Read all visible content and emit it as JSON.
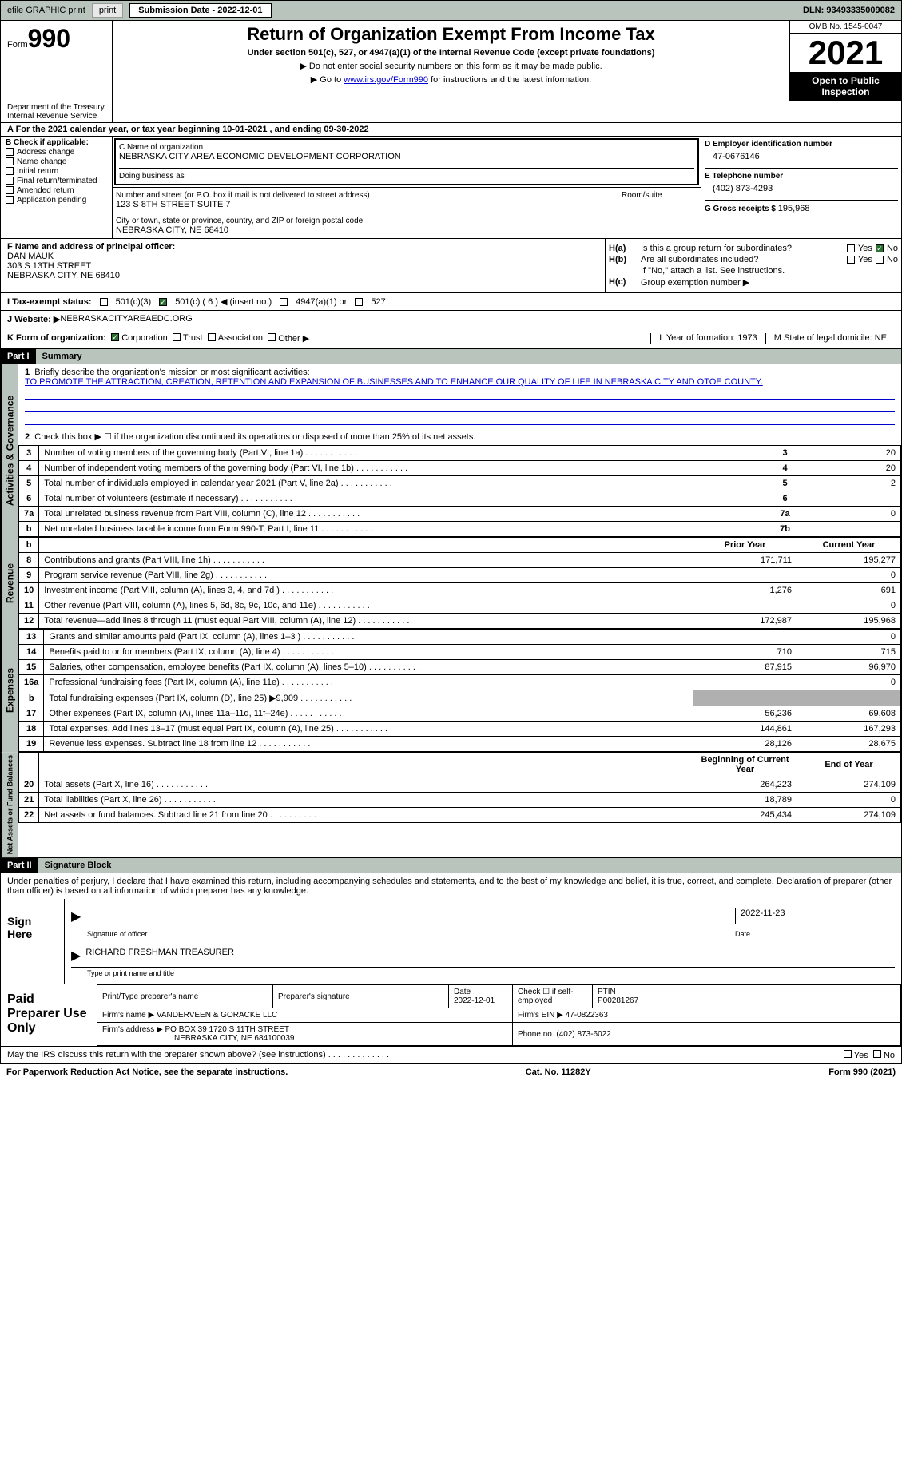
{
  "header": {
    "efile": "efile GRAPHIC print",
    "submission_label": "Submission Date - 2022-12-01",
    "dln": "DLN: 93493335009082"
  },
  "title": {
    "form_label": "Form",
    "form_num": "990",
    "main": "Return of Organization Exempt From Income Tax",
    "sub": "Under section 501(c), 527, or 4947(a)(1) of the Internal Revenue Code (except private foundations)",
    "note1": "▶ Do not enter social security numbers on this form as it may be made public.",
    "note2": "▶ Go to ",
    "link": "www.irs.gov/Form990",
    "note2b": " for instructions and the latest information.",
    "omb": "OMB No. 1545-0047",
    "year": "2021",
    "open": "Open to Public Inspection"
  },
  "dept": {
    "left": "Department of the Treasury\nInternal Revenue Service",
    "center": ""
  },
  "line_a": "A For the 2021 calendar year, or tax year beginning 10-01-2021    , and ending 09-30-2022",
  "section_b": {
    "b_label": "B Check if applicable:",
    "checks": [
      "Address change",
      "Name change",
      "Initial return",
      "Final return/terminated",
      "Amended return",
      "Application pending"
    ],
    "c_label": "C Name of organization",
    "org": "NEBRASKA CITY AREA ECONOMIC DEVELOPMENT CORPORATION",
    "dba_label": "Doing business as",
    "addr_label": "Number and street (or P.O. box if mail is not delivered to street address)",
    "room_label": "Room/suite",
    "addr": "123 S 8TH STREET SUITE 7",
    "city_label": "City or town, state or province, country, and ZIP or foreign postal code",
    "city": "NEBRASKA CITY, NE  68410",
    "d_label": "D Employer identification number",
    "ein": "47-0676146",
    "e_label": "E Telephone number",
    "phone": "(402) 873-4293",
    "g_label": "G Gross receipts $ ",
    "gross": "195,968"
  },
  "section_f": {
    "f_label": "F Name and address of principal officer:",
    "name": "DAN MAUK",
    "addr": "303 S 13TH STREET",
    "city": "NEBRASKA CITY, NE  68410",
    "ha": "H(a)",
    "ha_txt": "Is this a group return for subordinates?",
    "hb": "H(b)",
    "hb_txt": "Are all subordinates included?",
    "hb_note": "If \"No,\" attach a list. See instructions.",
    "hc": "H(c)",
    "hc_txt": "Group exemption number ▶",
    "yes": "Yes",
    "no": "No"
  },
  "row_i": {
    "label": "I   Tax-exempt status:",
    "opts": [
      "501(c)(3)",
      "501(c) ( 6 ) ◀ (insert no.)",
      "4947(a)(1) or",
      "527"
    ]
  },
  "row_j": {
    "label": "J   Website: ▶",
    "val": " NEBRASKACITYAREAEDC.ORG"
  },
  "row_k": {
    "label": "K Form of organization:",
    "opts": [
      "Corporation",
      "Trust",
      "Association",
      "Other ▶"
    ],
    "l": "L Year of formation: 1973",
    "m": "M State of legal domicile: NE"
  },
  "part1": {
    "hdr": "Part I",
    "title": "Summary",
    "vtext1": "Activities & Governance",
    "vtext2": "Revenue",
    "vtext3": "Expenses",
    "vtext4": "Net Assets or Fund Balances",
    "q1": "Briefly describe the organization's mission or most significant activities:",
    "mission": "TO PROMOTE THE ATTRACTION, CREATION, RETENTION AND EXPANSION OF BUSINESSES AND TO ENHANCE OUR QUALITY OF LIFE IN NEBRASKA CITY AND OTOE COUNTY.",
    "q2": "Check this box ▶ ☐ if the organization discontinued its operations or disposed of more than 25% of its net assets.",
    "rows": [
      {
        "n": "3",
        "t": "Number of voting members of the governing body (Part VI, line 1a)",
        "b": "3",
        "v": "20"
      },
      {
        "n": "4",
        "t": "Number of independent voting members of the governing body (Part VI, line 1b)",
        "b": "4",
        "v": "20"
      },
      {
        "n": "5",
        "t": "Total number of individuals employed in calendar year 2021 (Part V, line 2a)",
        "b": "5",
        "v": "2"
      },
      {
        "n": "6",
        "t": "Total number of volunteers (estimate if necessary)",
        "b": "6",
        "v": ""
      },
      {
        "n": "7a",
        "t": "Total unrelated business revenue from Part VIII, column (C), line 12",
        "b": "7a",
        "v": "0"
      },
      {
        "n": "b",
        "t": "Net unrelated business taxable income from Form 990-T, Part I, line 11",
        "b": "7b",
        "v": ""
      }
    ],
    "prior": "Prior Year",
    "current": "Current Year",
    "rev_rows": [
      {
        "n": "8",
        "t": "Contributions and grants (Part VIII, line 1h)",
        "p": "171,711",
        "c": "195,277"
      },
      {
        "n": "9",
        "t": "Program service revenue (Part VIII, line 2g)",
        "p": "",
        "c": "0"
      },
      {
        "n": "10",
        "t": "Investment income (Part VIII, column (A), lines 3, 4, and 7d )",
        "p": "1,276",
        "c": "691"
      },
      {
        "n": "11",
        "t": "Other revenue (Part VIII, column (A), lines 5, 6d, 8c, 9c, 10c, and 11e)",
        "p": "",
        "c": "0"
      },
      {
        "n": "12",
        "t": "Total revenue—add lines 8 through 11 (must equal Part VIII, column (A), line 12)",
        "p": "172,987",
        "c": "195,968"
      }
    ],
    "exp_rows": [
      {
        "n": "13",
        "t": "Grants and similar amounts paid (Part IX, column (A), lines 1–3 )",
        "p": "",
        "c": "0"
      },
      {
        "n": "14",
        "t": "Benefits paid to or for members (Part IX, column (A), line 4)",
        "p": "710",
        "c": "715"
      },
      {
        "n": "15",
        "t": "Salaries, other compensation, employee benefits (Part IX, column (A), lines 5–10)",
        "p": "87,915",
        "c": "96,970"
      },
      {
        "n": "16a",
        "t": "Professional fundraising fees (Part IX, column (A), line 11e)",
        "p": "",
        "c": "0"
      },
      {
        "n": "b",
        "t": "Total fundraising expenses (Part IX, column (D), line 25) ▶9,909",
        "p": "gray",
        "c": "gray"
      },
      {
        "n": "17",
        "t": "Other expenses (Part IX, column (A), lines 11a–11d, 11f–24e)",
        "p": "56,236",
        "c": "69,608"
      },
      {
        "n": "18",
        "t": "Total expenses. Add lines 13–17 (must equal Part IX, column (A), line 25)",
        "p": "144,861",
        "c": "167,293"
      },
      {
        "n": "19",
        "t": "Revenue less expenses. Subtract line 18 from line 12",
        "p": "28,126",
        "c": "28,675"
      }
    ],
    "begin": "Beginning of Current Year",
    "end": "End of Year",
    "net_rows": [
      {
        "n": "20",
        "t": "Total assets (Part X, line 16)",
        "p": "264,223",
        "c": "274,109"
      },
      {
        "n": "21",
        "t": "Total liabilities (Part X, line 26)",
        "p": "18,789",
        "c": "0"
      },
      {
        "n": "22",
        "t": "Net assets or fund balances. Subtract line 21 from line 20",
        "p": "245,434",
        "c": "274,109"
      }
    ]
  },
  "part2": {
    "hdr": "Part II",
    "title": "Signature Block",
    "text": "Under penalties of perjury, I declare that I have examined this return, including accompanying schedules and statements, and to the best of my knowledge and belief, it is true, correct, and complete. Declaration of preparer (other than officer) is based on all information of which preparer has any knowledge.",
    "sign_here": "Sign Here",
    "sig_officer": "Signature of officer",
    "date": "2022-11-23",
    "date_lbl": "Date",
    "name": "RICHARD FRESHMAN TREASURER",
    "name_lbl": "Type or print name and title",
    "paid": "Paid Preparer Use Only",
    "prep_name_lbl": "Print/Type preparer's name",
    "prep_sig_lbl": "Preparer's signature",
    "prep_date": "2022-12-01",
    "check_self": "Check ☐ if self-employed",
    "ptin_lbl": "PTIN",
    "ptin": "P00281267",
    "firm_name_lbl": "Firm's name    ▶",
    "firm_name": "VANDERVEEN & GORACKE LLC",
    "firm_ein_lbl": "Firm's EIN ▶",
    "firm_ein": "47-0822363",
    "firm_addr_lbl": "Firm's address ▶",
    "firm_addr": "PO BOX 39 1720 S 11TH STREET",
    "firm_city": "NEBRASKA CITY, NE  684100039",
    "phone_lbl": "Phone no.",
    "phone": "(402) 873-6022"
  },
  "footer": {
    "discuss": "May the IRS discuss this return with the preparer shown above? (see instructions)",
    "yes": "Yes",
    "no": "No",
    "paperwork": "For Paperwork Reduction Act Notice, see the separate instructions.",
    "cat": "Cat. No. 11282Y",
    "form": "Form 990 (2021)"
  }
}
